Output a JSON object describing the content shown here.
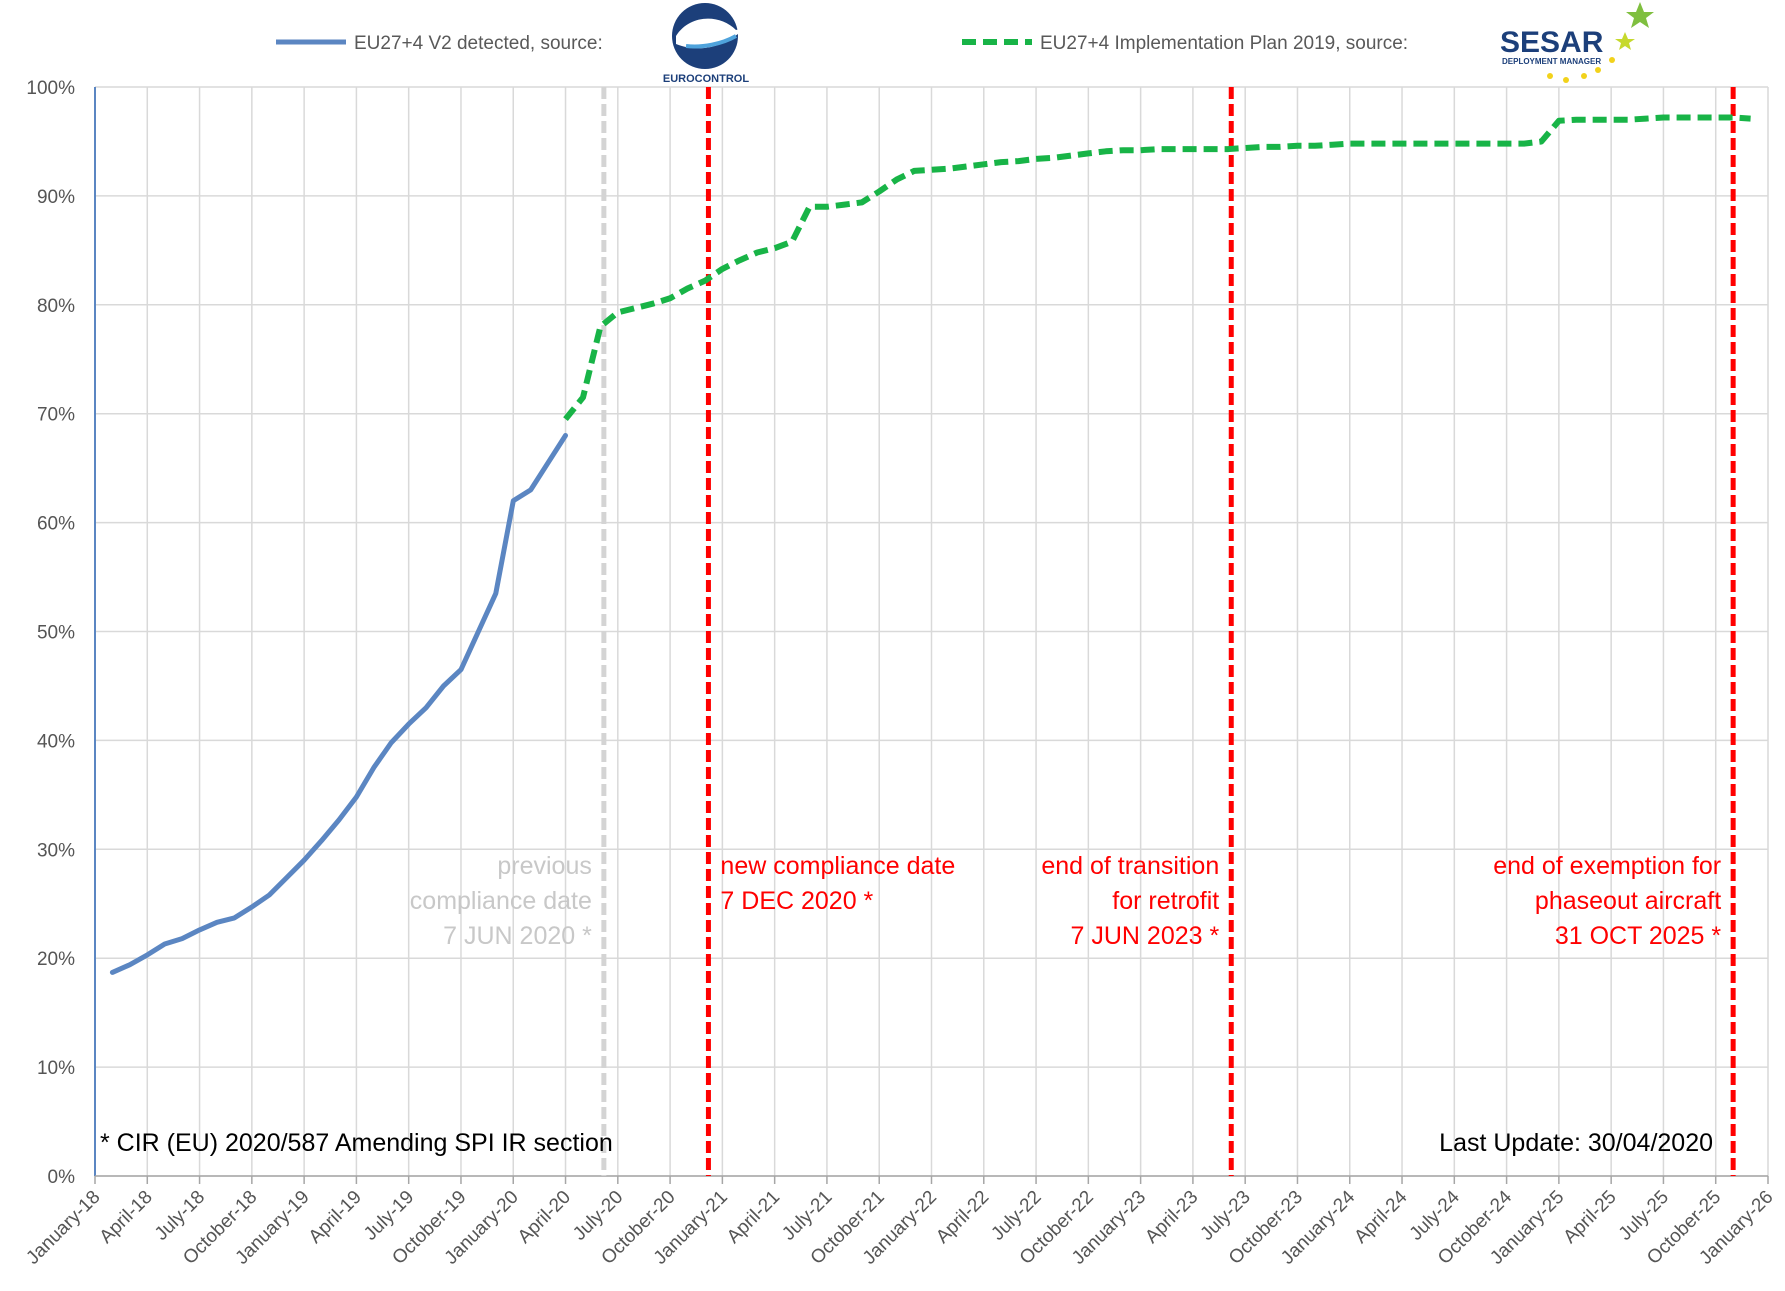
{
  "legend": {
    "series1_label": "EU27+4 V2 detected, source:",
    "series2_label": "EU27+4 Implementation Plan 2019, source:",
    "logo1_text": "EUROCONTROL",
    "logo2_text": "SESAR",
    "logo2_subtext": "DEPLOYMENT MANAGER",
    "logo1_icon": "eurocontrol-logo",
    "logo2_icon": "sesar-logo"
  },
  "notes": {
    "footnote": "* CIR (EU) 2020/587 Amending SPI IR section",
    "last_update": "Last Update: 30/04/2020"
  },
  "colors": {
    "series1": "#5B86C2",
    "series2": "#18B447",
    "deadline": "#FF0000",
    "previous": "#D4D4D4",
    "grid": "#D9D9D9",
    "axis": "#5B86C2"
  },
  "chart_data": {
    "type": "line",
    "xlabel": "",
    "ylabel": "",
    "x_range_months": [
      "January-18",
      "January-26"
    ],
    "ylim": [
      0,
      100
    ],
    "grid": true,
    "legend_position": "top",
    "x_ticks": [
      "January-18",
      "April-18",
      "July-18",
      "October-18",
      "January-19",
      "April-19",
      "July-19",
      "October-19",
      "January-20",
      "April-20",
      "July-20",
      "October-20",
      "January-21",
      "April-21",
      "July-21",
      "October-21",
      "January-22",
      "April-22",
      "July-22",
      "October-22",
      "January-23",
      "April-23",
      "July-23",
      "October-23",
      "January-24",
      "April-24",
      "July-24",
      "October-24",
      "January-25",
      "April-25",
      "July-25",
      "October-25",
      "January-26"
    ],
    "y_ticks": [
      "0%",
      "10%",
      "20%",
      "30%",
      "40%",
      "50%",
      "60%",
      "70%",
      "80%",
      "90%",
      "100%"
    ],
    "series": [
      {
        "name": "EU27+4 V2 detected, source:",
        "style": "solid",
        "points": [
          [
            "2018-02",
            18.7
          ],
          [
            "2018-03",
            19.4
          ],
          [
            "2018-04",
            20.3
          ],
          [
            "2018-05",
            21.3
          ],
          [
            "2018-06",
            21.8
          ],
          [
            "2018-07",
            22.6
          ],
          [
            "2018-08",
            23.3
          ],
          [
            "2018-09",
            23.7
          ],
          [
            "2018-10",
            24.7
          ],
          [
            "2018-11",
            25.8
          ],
          [
            "2018-12",
            27.4
          ],
          [
            "2019-01",
            29.0
          ],
          [
            "2019-02",
            30.8
          ],
          [
            "2019-03",
            32.7
          ],
          [
            "2019-04",
            34.8
          ],
          [
            "2019-05",
            37.5
          ],
          [
            "2019-06",
            39.8
          ],
          [
            "2019-07",
            41.5
          ],
          [
            "2019-08",
            43.0
          ],
          [
            "2019-09",
            45.0
          ],
          [
            "2019-10",
            46.5
          ],
          [
            "2019-11",
            50.0
          ],
          [
            "2019-12",
            53.5
          ],
          [
            "2020-01",
            62.0
          ],
          [
            "2020-02",
            63.0
          ],
          [
            "2020-03",
            65.5
          ],
          [
            "2020-04",
            68.0
          ]
        ]
      },
      {
        "name": "EU27+4 Implementation Plan 2019, source:",
        "style": "dashed",
        "points": [
          [
            "2020-04",
            69.5
          ],
          [
            "2020-05",
            71.5
          ],
          [
            "2020-06",
            78.0
          ],
          [
            "2020-07",
            79.3
          ],
          [
            "2020-08",
            79.7
          ],
          [
            "2020-09",
            80.1
          ],
          [
            "2020-10",
            80.6
          ],
          [
            "2020-11",
            81.5
          ],
          [
            "2020-12",
            82.2
          ],
          [
            "2021-01",
            83.3
          ],
          [
            "2021-02",
            84.1
          ],
          [
            "2021-03",
            84.8
          ],
          [
            "2021-04",
            85.2
          ],
          [
            "2021-05",
            85.8
          ],
          [
            "2021-06",
            89.0
          ],
          [
            "2021-07",
            89.0
          ],
          [
            "2021-08",
            89.2
          ],
          [
            "2021-09",
            89.4
          ],
          [
            "2021-10",
            90.4
          ],
          [
            "2021-11",
            91.5
          ],
          [
            "2021-12",
            92.3
          ],
          [
            "2022-01",
            92.4
          ],
          [
            "2022-02",
            92.5
          ],
          [
            "2022-03",
            92.7
          ],
          [
            "2022-04",
            92.9
          ],
          [
            "2022-05",
            93.1
          ],
          [
            "2022-06",
            93.2
          ],
          [
            "2022-07",
            93.4
          ],
          [
            "2022-08",
            93.5
          ],
          [
            "2022-09",
            93.7
          ],
          [
            "2022-10",
            93.9
          ],
          [
            "2022-11",
            94.1
          ],
          [
            "2022-12",
            94.2
          ],
          [
            "2023-01",
            94.2
          ],
          [
            "2023-02",
            94.3
          ],
          [
            "2023-03",
            94.3
          ],
          [
            "2023-04",
            94.3
          ],
          [
            "2023-05",
            94.3
          ],
          [
            "2023-06",
            94.3
          ],
          [
            "2023-07",
            94.4
          ],
          [
            "2023-08",
            94.5
          ],
          [
            "2023-09",
            94.5
          ],
          [
            "2023-10",
            94.6
          ],
          [
            "2023-11",
            94.6
          ],
          [
            "2023-12",
            94.7
          ],
          [
            "2024-01",
            94.8
          ],
          [
            "2024-02",
            94.8
          ],
          [
            "2024-03",
            94.8
          ],
          [
            "2024-04",
            94.8
          ],
          [
            "2024-05",
            94.8
          ],
          [
            "2024-06",
            94.8
          ],
          [
            "2024-07",
            94.8
          ],
          [
            "2024-08",
            94.8
          ],
          [
            "2024-09",
            94.8
          ],
          [
            "2024-10",
            94.8
          ],
          [
            "2024-11",
            94.8
          ],
          [
            "2024-12",
            95.0
          ],
          [
            "2025-01",
            96.9
          ],
          [
            "2025-02",
            97.0
          ],
          [
            "2025-03",
            97.0
          ],
          [
            "2025-04",
            97.0
          ],
          [
            "2025-05",
            97.0
          ],
          [
            "2025-06",
            97.1
          ],
          [
            "2025-07",
            97.2
          ],
          [
            "2025-08",
            97.2
          ],
          [
            "2025-09",
            97.2
          ],
          [
            "2025-10",
            97.2
          ],
          [
            "2025-11",
            97.2
          ],
          [
            "2025-12",
            97.1
          ]
        ]
      }
    ],
    "vertical_markers": [
      {
        "date": "2020-06-07",
        "kind": "previous",
        "align": "left",
        "lines": [
          "previous",
          "compliance date",
          "7 JUN 2020 *"
        ]
      },
      {
        "date": "2020-12-07",
        "kind": "deadline",
        "align": "right",
        "lines": [
          "new compliance date",
          "7 DEC 2020 *"
        ]
      },
      {
        "date": "2023-06-07",
        "kind": "deadline",
        "align": "left",
        "lines": [
          "end of transition",
          "for retrofit",
          "7 JUN 2023 *"
        ]
      },
      {
        "date": "2025-10-31",
        "kind": "deadline",
        "align": "left",
        "lines": [
          "end of exemption for",
          "phaseout aircraft",
          "31 OCT 2025 *"
        ]
      }
    ]
  }
}
